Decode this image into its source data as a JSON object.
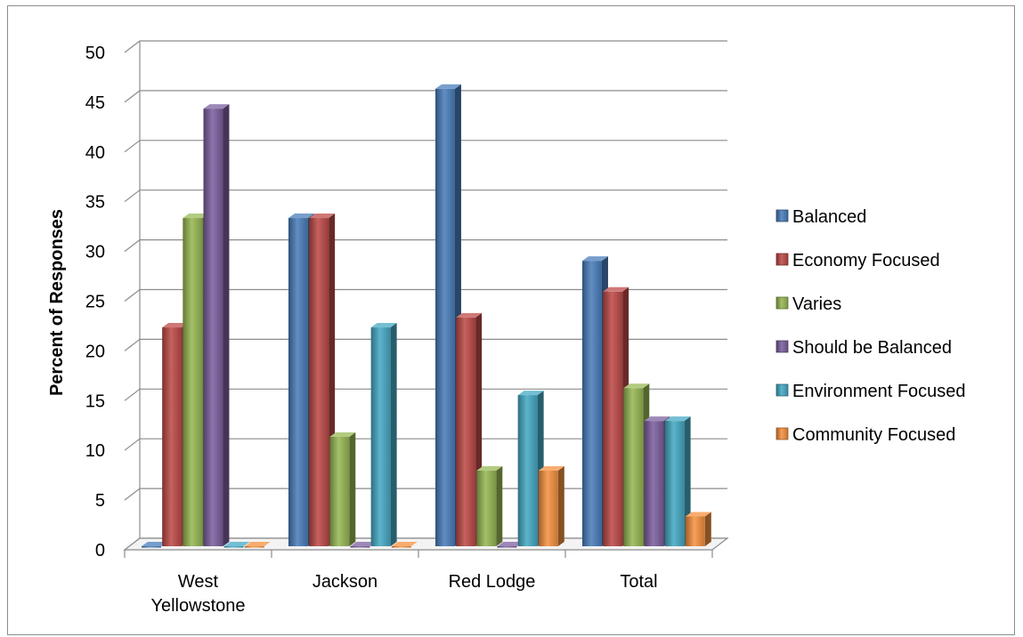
{
  "chart_data": {
    "type": "bar",
    "title": "",
    "xlabel": "",
    "ylabel": "Percent of Responses",
    "ylim": [
      0,
      50
    ],
    "yticks": [
      0,
      5,
      10,
      15,
      20,
      25,
      30,
      35,
      40,
      45,
      50
    ],
    "ytick_labels": [
      "0",
      "5",
      "10",
      "15",
      "20",
      "25",
      "30",
      "35",
      "40",
      "45",
      "50"
    ],
    "grid": true,
    "legend_position": "right",
    "categories": [
      "West Yellowstone",
      "Jackson",
      "Red Lodge",
      "Total"
    ],
    "category_labels": [
      [
        "West",
        "Yellowstone"
      ],
      [
        "Jackson"
      ],
      [
        "Red Lodge"
      ],
      [
        "Total"
      ]
    ],
    "series": [
      {
        "name": "Balanced",
        "color": "#4a7ebb",
        "values": [
          0,
          33,
          46,
          28.7
        ]
      },
      {
        "name": "Economy Focused",
        "color": "#be4b48",
        "values": [
          22,
          33,
          23,
          25.6
        ]
      },
      {
        "name": "Varies",
        "color": "#98b954",
        "values": [
          33,
          11,
          7.6,
          15.9
        ]
      },
      {
        "name": "Should be Balanced",
        "color": "#7d60a0",
        "values": [
          44,
          0,
          0,
          12.6
        ]
      },
      {
        "name": "Environment Focused",
        "color": "#46aac5",
        "values": [
          0,
          22,
          15.2,
          12.6
        ]
      },
      {
        "name": "Community Focused",
        "color": "#f69240",
        "values": [
          0,
          0,
          7.6,
          3
        ]
      }
    ]
  }
}
